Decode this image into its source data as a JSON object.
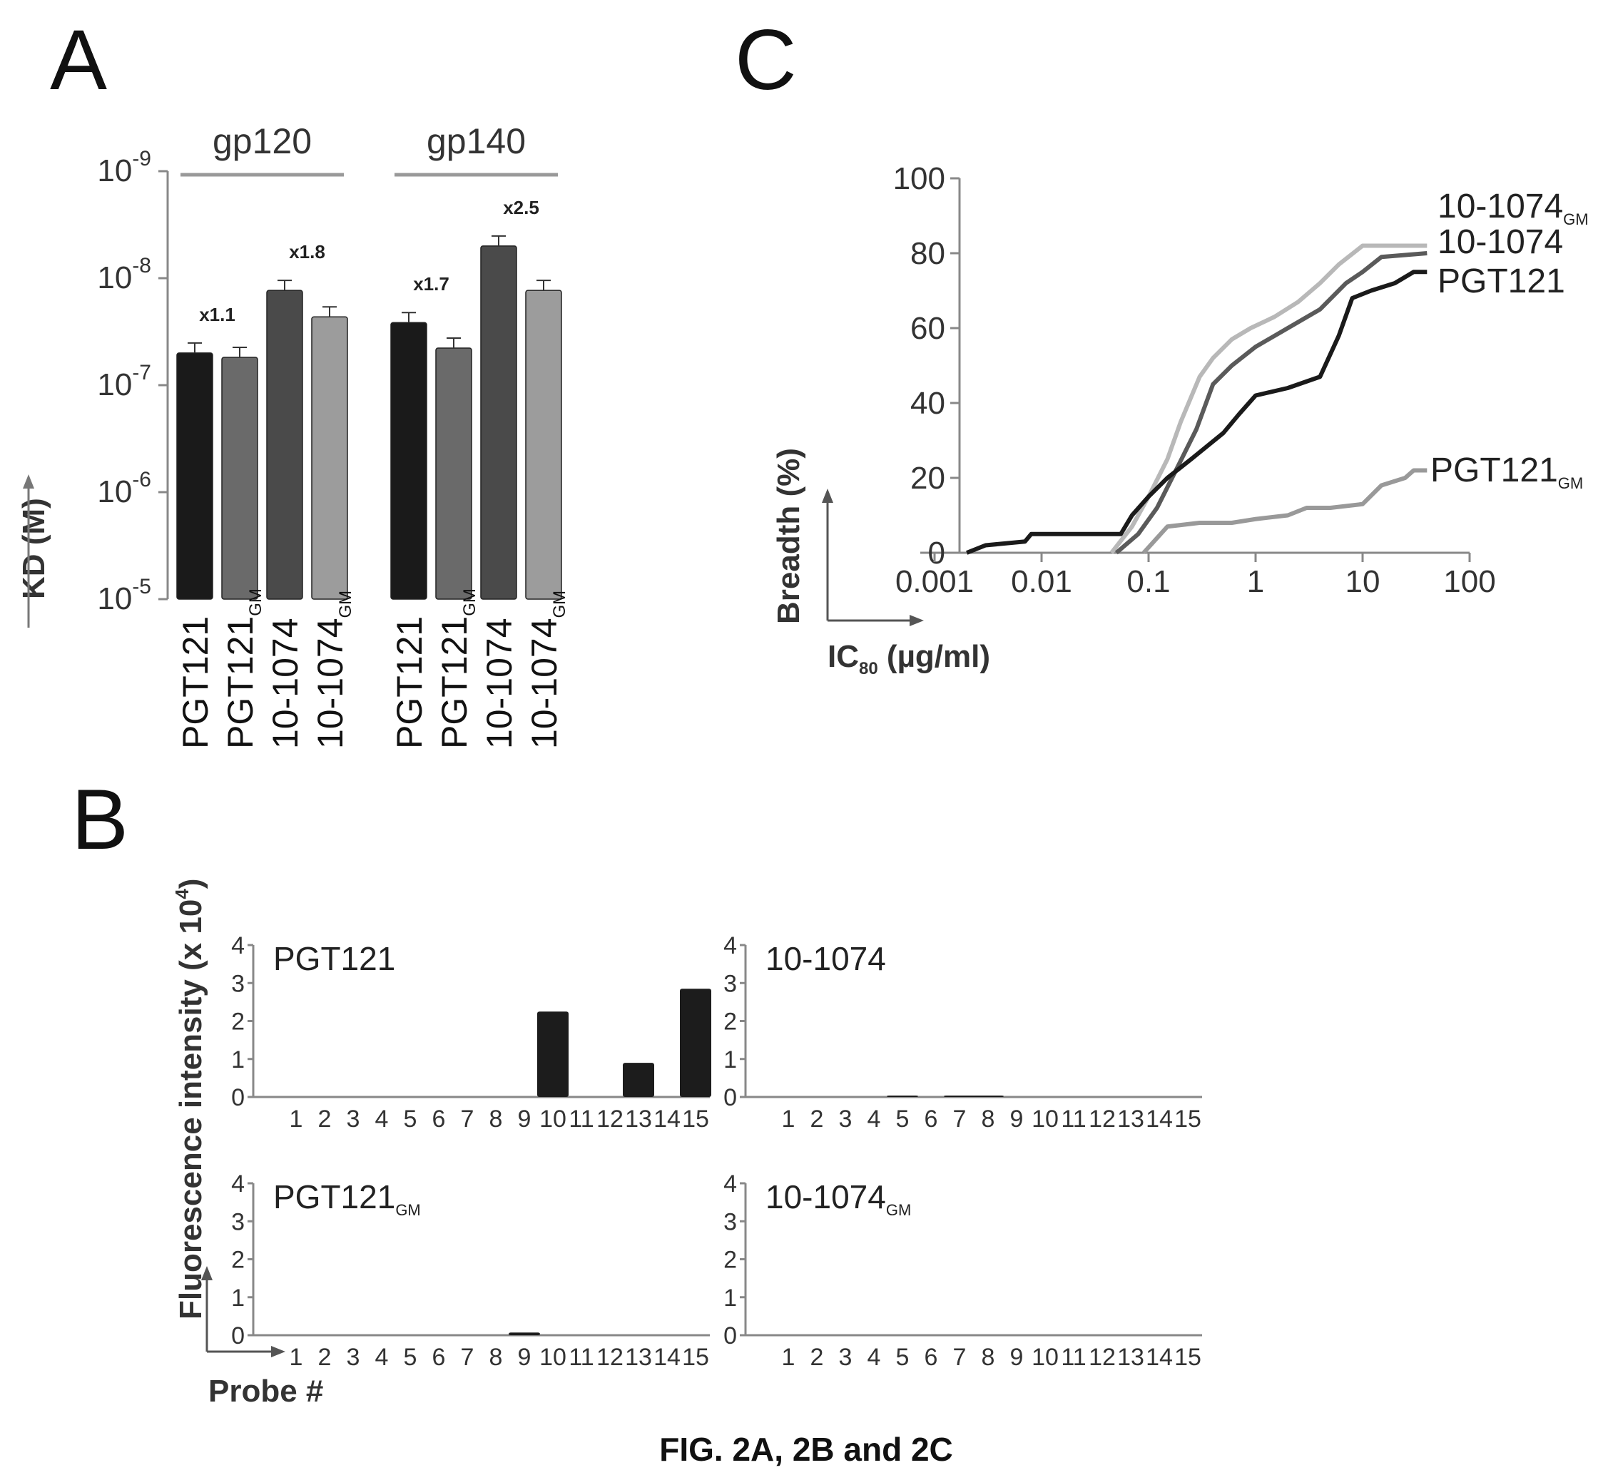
{
  "caption": "FIG. 2A, 2B and 2C",
  "panels": {
    "a": {
      "letter": "A",
      "ylabel": "KD (M)",
      "yticks": [
        {
          "base": "10",
          "exp": "-9"
        },
        {
          "base": "10",
          "exp": "-8"
        },
        {
          "base": "10",
          "exp": "-7"
        },
        {
          "base": "10",
          "exp": "-6"
        },
        {
          "base": "10",
          "exp": "-5"
        }
      ]
    },
    "b": {
      "letter": "B",
      "ylabel": "Fluorescence intensity (x 10",
      "ylabel_exp": "4",
      "ylabel_end": ")",
      "xlabel": "Probe #"
    },
    "c": {
      "letter": "C",
      "ylabel": "Breadth (%)",
      "xlabel_main": "IC",
      "xlabel_sub": "80",
      "xlabel_rest": " (µg/ml)",
      "xticks": [
        "0.001",
        "0.01",
        "0.1",
        "1",
        "10",
        "100"
      ],
      "yticks": [
        "0",
        "20",
        "40",
        "60",
        "80",
        "100"
      ]
    }
  },
  "chart_data": [
    {
      "type": "bar",
      "panel": "A",
      "ylabel": "KD (M)",
      "yscale": "log",
      "ylim": [
        1e-05,
        1e-09
      ],
      "groups": [
        {
          "name": "gp120",
          "bars": [
            {
              "label": "PGT121",
              "sub": "",
              "value": 5e-08,
              "color": "#1a1a1a"
            },
            {
              "label": "PGT121",
              "sub": "GM",
              "value": 5.5e-08,
              "color": "#6a6a6a"
            },
            {
              "label": "10-1074",
              "sub": "",
              "value": 1.3e-08,
              "color": "#4a4a4a"
            },
            {
              "label": "10-1074",
              "sub": "GM",
              "value": 2.3e-08,
              "color": "#9c9c9c"
            }
          ],
          "annotations": [
            "x1.1",
            "x1.8"
          ]
        },
        {
          "name": "gp140",
          "bars": [
            {
              "label": "PGT121",
              "sub": "",
              "value": 2.6e-08,
              "color": "#1a1a1a"
            },
            {
              "label": "PGT121",
              "sub": "GM",
              "value": 4.5e-08,
              "color": "#6a6a6a"
            },
            {
              "label": "10-1074",
              "sub": "",
              "value": 5e-09,
              "color": "#4a4a4a"
            },
            {
              "label": "10-1074",
              "sub": "GM",
              "value": 1.3e-08,
              "color": "#9c9c9c"
            }
          ],
          "annotations": [
            "x1.7",
            "x2.5"
          ]
        }
      ]
    },
    {
      "type": "bar",
      "panel": "B",
      "xlabel": "Probe #",
      "ylabel": "Fluorescence intensity (x 10^4)",
      "ylim": [
        0,
        4
      ],
      "yticks": [
        "0",
        "1",
        "2",
        "3",
        "4"
      ],
      "categories": [
        "1",
        "2",
        "3",
        "4",
        "5",
        "6",
        "7",
        "8",
        "9",
        "10",
        "11",
        "12",
        "13",
        "14",
        "15"
      ],
      "subplots": [
        {
          "name": "PGT121",
          "sub": "",
          "values": [
            0,
            0,
            0,
            0,
            0,
            0,
            0,
            0,
            0,
            2.25,
            0,
            0,
            0.9,
            0,
            2.85
          ]
        },
        {
          "name": "10-1074",
          "sub": "",
          "values": [
            0,
            0,
            0,
            0,
            0.03,
            0,
            0.03,
            0.03,
            0,
            0,
            0,
            0,
            0,
            0,
            0
          ]
        },
        {
          "name": "PGT121",
          "sub": "GM",
          "values": [
            0,
            0,
            0,
            0,
            0,
            0,
            0,
            0,
            0.07,
            0,
            0,
            0,
            0,
            0,
            0
          ]
        },
        {
          "name": "10-1074",
          "sub": "GM",
          "values": [
            0,
            0,
            0,
            0,
            0,
            0,
            0,
            0,
            0,
            0,
            0,
            0,
            0,
            0,
            0
          ]
        }
      ]
    },
    {
      "type": "line",
      "panel": "C",
      "xlabel": "IC80 (µg/ml)",
      "ylabel": "Breadth (%)",
      "xscale": "log",
      "xlim": [
        0.001,
        100
      ],
      "ylim": [
        0,
        100
      ],
      "series": [
        {
          "name": "10-1074",
          "sub": "GM",
          "color": "#b8b8b8",
          "points": [
            [
              0.045,
              0
            ],
            [
              0.07,
              7
            ],
            [
              0.1,
              15
            ],
            [
              0.15,
              25
            ],
            [
              0.2,
              35
            ],
            [
              0.3,
              47
            ],
            [
              0.4,
              52
            ],
            [
              0.6,
              57
            ],
            [
              0.9,
              60
            ],
            [
              1.5,
              63
            ],
            [
              2.5,
              67
            ],
            [
              4,
              72
            ],
            [
              6,
              77
            ],
            [
              10,
              82
            ],
            [
              40,
              82
            ]
          ]
        },
        {
          "name": "10-1074",
          "sub": "",
          "color": "#5a5a5a",
          "points": [
            [
              0.05,
              0
            ],
            [
              0.08,
              5
            ],
            [
              0.12,
              12
            ],
            [
              0.18,
              22
            ],
            [
              0.28,
              33
            ],
            [
              0.4,
              45
            ],
            [
              0.6,
              50
            ],
            [
              1,
              55
            ],
            [
              2,
              60
            ],
            [
              4,
              65
            ],
            [
              7,
              72
            ],
            [
              10,
              75
            ],
            [
              15,
              79
            ],
            [
              40,
              80
            ]
          ]
        },
        {
          "name": "PGT121",
          "sub": "",
          "color": "#1a1a1a",
          "points": [
            [
              0.002,
              0
            ],
            [
              0.003,
              2
            ],
            [
              0.007,
              3
            ],
            [
              0.008,
              5
            ],
            [
              0.055,
              5
            ],
            [
              0.07,
              10
            ],
            [
              0.1,
              15
            ],
            [
              0.15,
              20
            ],
            [
              0.25,
              25
            ],
            [
              0.5,
              32
            ],
            [
              0.7,
              37
            ],
            [
              1,
              42
            ],
            [
              2,
              44
            ],
            [
              4,
              47
            ],
            [
              6,
              58
            ],
            [
              8,
              68
            ],
            [
              12,
              70
            ],
            [
              20,
              72
            ],
            [
              30,
              75
            ],
            [
              40,
              75
            ]
          ]
        },
        {
          "name": "PGT121",
          "sub": "GM",
          "color": "#999999",
          "points": [
            [
              0.09,
              0
            ],
            [
              0.15,
              7
            ],
            [
              0.3,
              8
            ],
            [
              0.6,
              8
            ],
            [
              1,
              9
            ],
            [
              2,
              10
            ],
            [
              3,
              12
            ],
            [
              5,
              12
            ],
            [
              10,
              13
            ],
            [
              15,
              18
            ],
            [
              25,
              20
            ],
            [
              30,
              22
            ],
            [
              40,
              22
            ]
          ]
        }
      ]
    }
  ]
}
